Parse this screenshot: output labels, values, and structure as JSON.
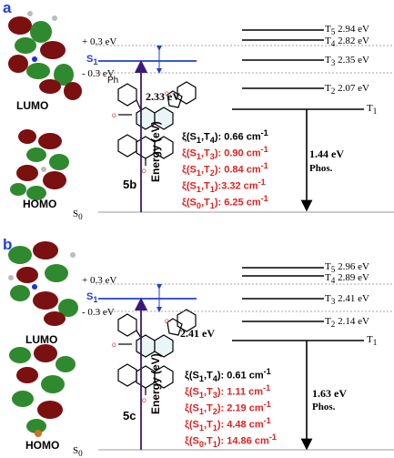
{
  "colors": {
    "panel_label": "#1f3fd6",
    "s1_line": "#1f3fd6",
    "soc_red": "#e02020",
    "energy_arrow": "#3a1878",
    "orbital_red": "#7a1010",
    "orbital_green": "#2f8a2f"
  },
  "panels": [
    {
      "label": "a",
      "compound": "5b",
      "lumo": "LUMO",
      "homo": "HOMO",
      "substituent": "Ph",
      "s0": "S",
      "s0_sub": "0",
      "s1": "S",
      "s1_sub": "1",
      "plus": "+ 0.3 eV",
      "minus": "- 0.3 eV",
      "s1_energy": "2.33 eV",
      "energy_axis": "Energy (eV)",
      "phos_gap": "1.44 eV",
      "phos": "Phos.",
      "triplets": [
        {
          "name": "T",
          "sub": "5",
          "energy": "2.94 eV"
        },
        {
          "name": "T",
          "sub": "4",
          "energy": "2.82 eV"
        },
        {
          "name": "T",
          "sub": "3",
          "energy": "2.35 eV"
        },
        {
          "name": "T",
          "sub": "2",
          "energy": "2.07 eV"
        },
        {
          "name": "T",
          "sub": "1",
          "energy": ""
        }
      ],
      "soc": [
        {
          "text": "ξ(S1,T4): 0.66 cm-1",
          "prefix": "ξ(S",
          "s": "1",
          "mid": ",T",
          "t": "4",
          "val": "): 0.66 cm",
          "sup": "-1",
          "red": false
        },
        {
          "text": "ξ(S1,T3): 0.90 cm-1",
          "prefix": "ξ(S",
          "s": "1",
          "mid": ",T",
          "t": "3",
          "val": "): 0.90 cm",
          "sup": "-1",
          "red": true
        },
        {
          "text": "ξ(S1,T2): 0.84 cm-1",
          "prefix": "ξ(S",
          "s": "1",
          "mid": ",T",
          "t": "2",
          "val": "): 0.84 cm",
          "sup": "-1",
          "red": true
        },
        {
          "text": "ξ(S1,T1):3.32 cm-1",
          "prefix": "ξ(S",
          "s": "1",
          "mid": ",T",
          "t": "1",
          "val": "):3.32 cm",
          "sup": "-1",
          "red": true
        },
        {
          "text": "ξ(S0,T1): 6.25 cm-1",
          "prefix": "ξ(S",
          "s": "0",
          "mid": ",T",
          "t": "1",
          "val": "): 6.25 cm",
          "sup": "-1",
          "red": true
        }
      ]
    },
    {
      "label": "b",
      "compound": "5c",
      "lumo": "LUMO",
      "homo": "HOMO",
      "substituent": "",
      "s0": "S",
      "s0_sub": "0",
      "s1": "S",
      "s1_sub": "1",
      "plus": "+ 0.3 eV",
      "minus": "- 0.3 eV",
      "s1_energy": "2.41 eV",
      "energy_axis": "Energy (eV)",
      "phos_gap": "1.63 eV",
      "phos": "Phos.",
      "triplets": [
        {
          "name": "T",
          "sub": "5",
          "energy": "2.96 eV"
        },
        {
          "name": "T",
          "sub": "4",
          "energy": "2.89 eV"
        },
        {
          "name": "T",
          "sub": "3",
          "energy": "2.41 eV"
        },
        {
          "name": "T",
          "sub": "2",
          "energy": "2.14 eV"
        },
        {
          "name": "T",
          "sub": "1",
          "energy": ""
        }
      ],
      "soc": [
        {
          "text": "ξ(S1,T4): 0.61 cm-1",
          "prefix": "ξ(S",
          "s": "1",
          "mid": ",T",
          "t": "4",
          "val": "): 0.61 cm",
          "sup": "-1",
          "red": false
        },
        {
          "text": "ξ(S1,T3): 1.11 cm-1",
          "prefix": "ξ(S",
          "s": "1",
          "mid": ",T",
          "t": "3",
          "val": "): 1.11 cm",
          "sup": "-1",
          "red": true
        },
        {
          "text": "ξ(S1,T2): 2.19 cm-1",
          "prefix": "ξ(S",
          "s": "1",
          "mid": ",T",
          "t": "2",
          "val": "): 2.19 cm",
          "sup": "-1",
          "red": true
        },
        {
          "text": "ξ(S1,T1): 4.48 cm-1",
          "prefix": "ξ(S",
          "s": "1",
          "mid": ",T",
          "t": "1",
          "val": "): 4.48 cm",
          "sup": "-1",
          "red": true
        },
        {
          "text": "ξ(S0,T1): 14.86 cm-1",
          "prefix": "ξ(S",
          "s": "0",
          "mid": ",T",
          "t": "1",
          "val": "): 14.86 cm",
          "sup": "-1",
          "red": true
        }
      ]
    }
  ]
}
